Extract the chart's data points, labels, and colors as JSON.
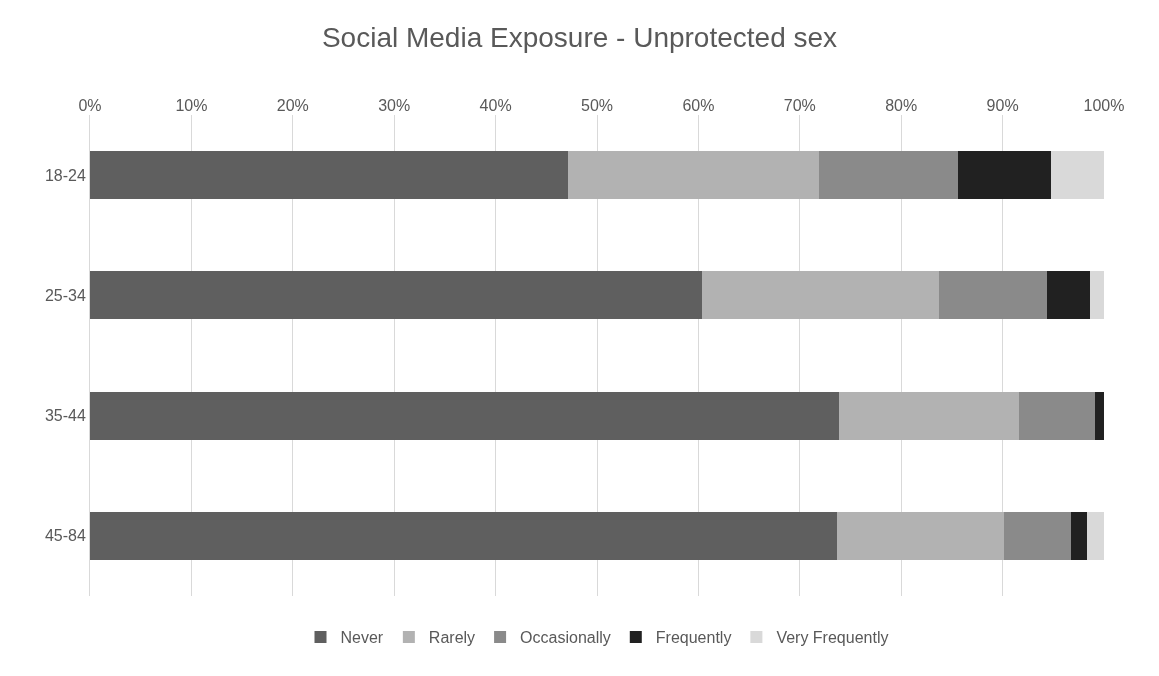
{
  "chart_data": {
    "type": "bar",
    "orientation": "horizontal",
    "stacked": true,
    "title": "Social Media Exposure - Unprotected sex",
    "categories": [
      "18-24",
      "25-34",
      "35-44",
      "45-84"
    ],
    "series": [
      {
        "name": "Never",
        "color": "#5f5f5f",
        "values": [
          47.1,
          60.4,
          73.9,
          73.7
        ]
      },
      {
        "name": "Rarely",
        "color": "#b2b2b2",
        "values": [
          24.8,
          23.3,
          17.7,
          16.4
        ]
      },
      {
        "name": "Occasionally",
        "color": "#8a8a8a",
        "values": [
          13.7,
          10.7,
          7.5,
          6.6
        ]
      },
      {
        "name": "Frequently",
        "color": "#212121",
        "values": [
          9.2,
          4.2,
          0.9,
          1.6
        ]
      },
      {
        "name": "Very Frequently",
        "color": "#d9d9d9",
        "values": [
          5.2,
          1.4,
          0,
          1.7
        ]
      }
    ],
    "xlim": [
      0,
      100
    ],
    "xticks": [
      {
        "value": 0,
        "label": "0%"
      },
      {
        "value": 10,
        "label": "10%"
      },
      {
        "value": 20,
        "label": "20%"
      },
      {
        "value": 30,
        "label": "30%"
      },
      {
        "value": 40,
        "label": "40%"
      },
      {
        "value": 50,
        "label": "50%"
      },
      {
        "value": 60,
        "label": "60%"
      },
      {
        "value": 70,
        "label": "70%"
      },
      {
        "value": 80,
        "label": "80%"
      },
      {
        "value": 90,
        "label": "90%"
      },
      {
        "value": 100,
        "label": "100%"
      }
    ],
    "grid": "x",
    "legend": "bottom"
  }
}
